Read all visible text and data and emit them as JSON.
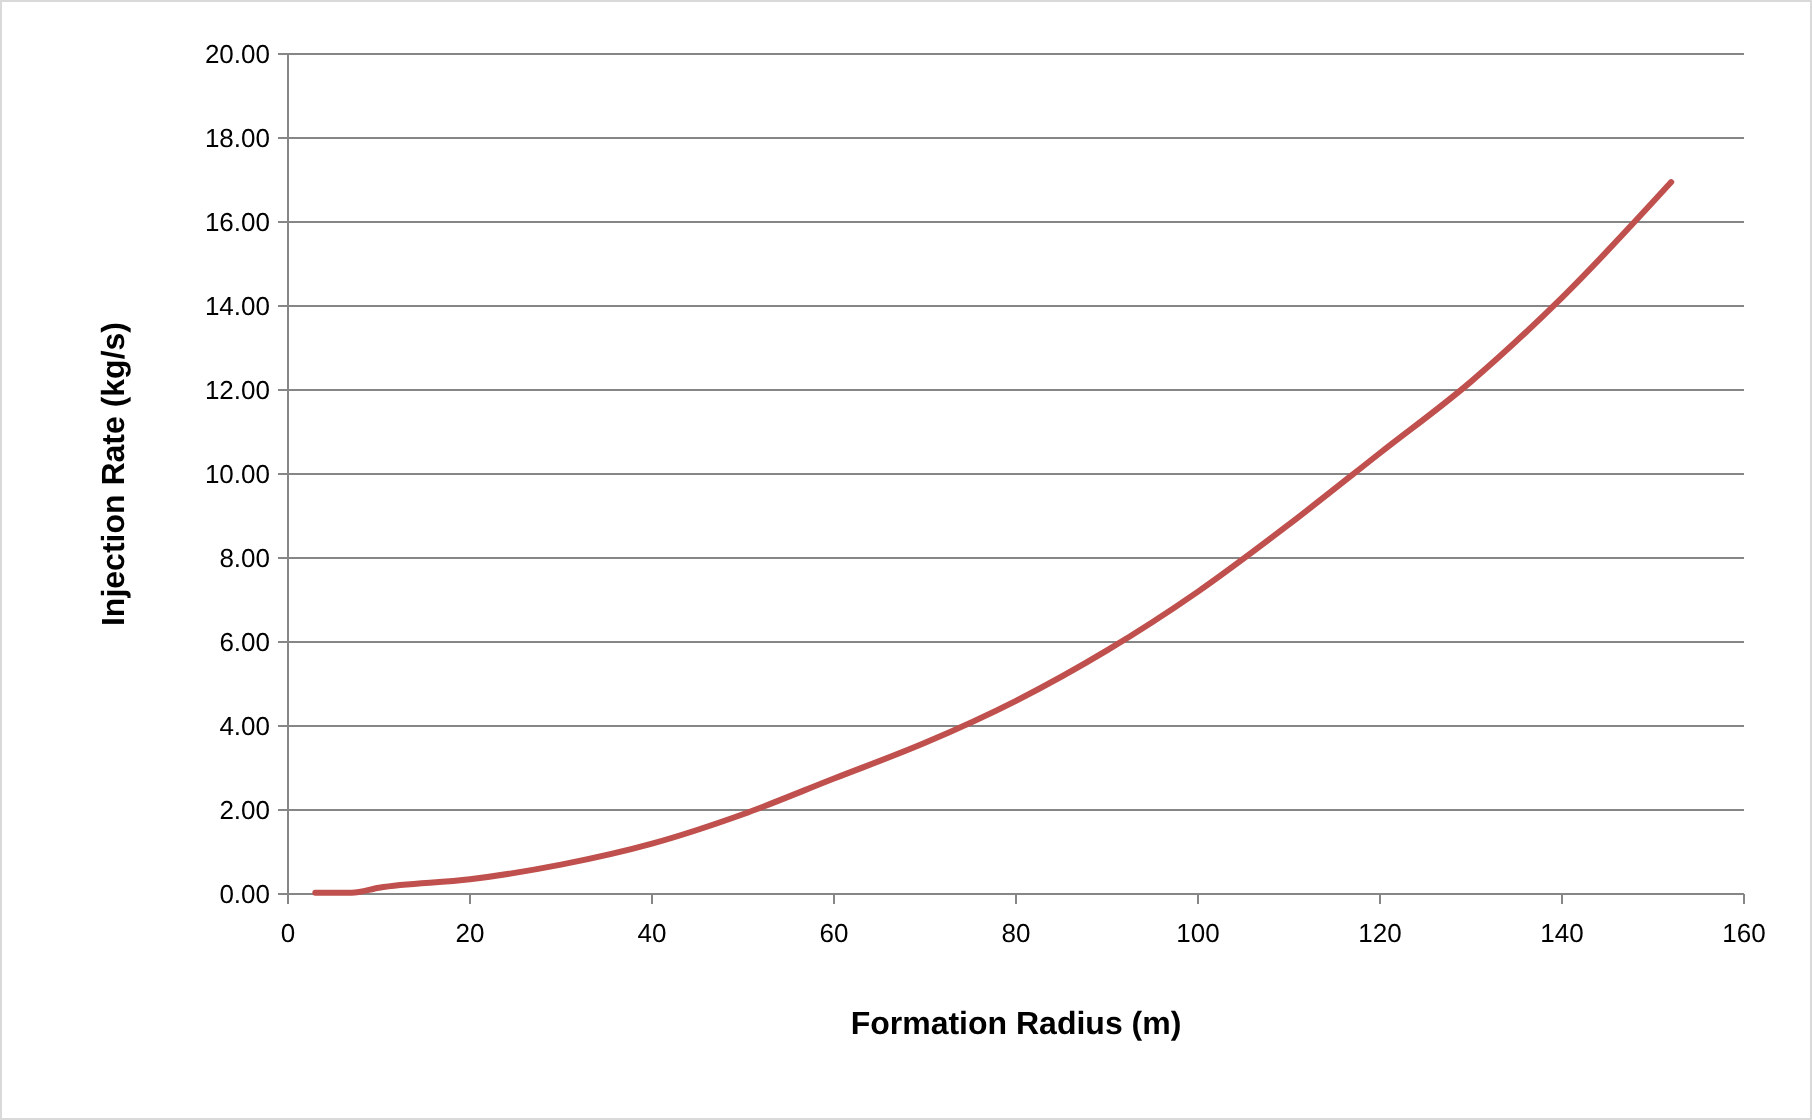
{
  "chart_data": {
    "type": "line",
    "xlabel": "Formation Radius (m)",
    "ylabel": "Injection Rate (kg/s)",
    "xlim": [
      0,
      160
    ],
    "xticks": [
      0,
      20,
      40,
      60,
      80,
      100,
      120,
      140,
      160
    ],
    "ylim": [
      0,
      20
    ],
    "yticks": [
      {
        "value": 0,
        "label": "0.00"
      },
      {
        "value": 2,
        "label": "2.00"
      },
      {
        "value": 4,
        "label": "4.00"
      },
      {
        "value": 6,
        "label": "6.00"
      },
      {
        "value": 8,
        "label": "8.00"
      },
      {
        "value": 10,
        "label": "10.00"
      },
      {
        "value": 12,
        "label": "12.00"
      },
      {
        "value": 14,
        "label": "14.00"
      },
      {
        "value": 16,
        "label": "16.00"
      },
      {
        "value": 18,
        "label": "18.00"
      },
      {
        "value": 20,
        "label": "20.00"
      }
    ],
    "grid": "y",
    "marker": "none",
    "line_style": "solid",
    "series": [
      {
        "color": "#c0504d",
        "x": [
          3,
          7,
          10,
          20,
          30,
          40,
          50,
          60,
          70,
          80,
          90,
          100,
          110,
          120,
          130,
          140,
          152
        ],
        "values": [
          0.03,
          0.03,
          0.15,
          0.35,
          0.7,
          1.2,
          1.9,
          2.75,
          3.6,
          4.6,
          5.8,
          7.2,
          8.8,
          10.5,
          12.2,
          14.2,
          16.95
        ]
      }
    ]
  }
}
